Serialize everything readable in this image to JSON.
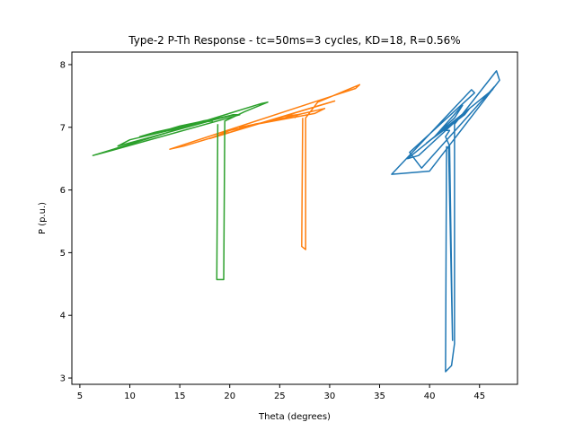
{
  "chart_data": {
    "type": "line",
    "title": "Type-2 P-Th Response - tc=50ms=3 cycles, KD=18, R=0.56%",
    "xlabel": "Theta (degrees)",
    "ylabel": "P (p.u.)",
    "xlim": [
      4.2,
      48.8
    ],
    "ylim": [
      2.9,
      8.2
    ],
    "xticks": [
      5,
      10,
      15,
      20,
      25,
      30,
      35,
      40,
      45
    ],
    "yticks": [
      3,
      4,
      5,
      6,
      7,
      8
    ],
    "grid": false,
    "legend": "none",
    "series": [
      {
        "color": "#1f77b4",
        "points": [
          [
            41.7,
            6.7
          ],
          [
            41.6,
            3.1
          ],
          [
            42.2,
            3.2
          ],
          [
            42.5,
            3.55
          ],
          [
            42.5,
            7.05
          ],
          [
            46.7,
            7.9
          ],
          [
            47.0,
            7.75
          ],
          [
            40.0,
            6.3
          ],
          [
            36.2,
            6.25
          ],
          [
            44.2,
            7.6
          ],
          [
            44.5,
            7.55
          ],
          [
            38.0,
            6.6
          ],
          [
            39.2,
            6.35
          ],
          [
            46.5,
            7.65
          ],
          [
            46.3,
            7.6
          ],
          [
            37.8,
            6.5
          ],
          [
            38.9,
            6.55
          ],
          [
            44.0,
            7.3
          ],
          [
            43.5,
            7.2
          ],
          [
            39.7,
            6.75
          ],
          [
            40.5,
            6.85
          ],
          [
            43.3,
            7.35
          ],
          [
            42.5,
            7.15
          ],
          [
            40.8,
            6.9
          ],
          [
            41.3,
            6.95
          ],
          [
            42.0,
            6.95
          ],
          [
            41.6,
            6.85
          ],
          [
            42.0,
            6.7
          ],
          [
            42.3,
            3.6
          ],
          [
            41.9,
            6.7
          ]
        ]
      },
      {
        "color": "#ff7f0e",
        "points": [
          [
            27.3,
            7.15
          ],
          [
            27.2,
            5.1
          ],
          [
            27.6,
            5.05
          ],
          [
            27.6,
            7.15
          ],
          [
            28.8,
            7.4
          ],
          [
            33.0,
            7.68
          ],
          [
            32.6,
            7.62
          ],
          [
            14.0,
            6.65
          ],
          [
            15.4,
            6.7
          ],
          [
            29.0,
            7.35
          ],
          [
            30.5,
            7.42
          ],
          [
            18.0,
            6.82
          ],
          [
            20.0,
            6.95
          ],
          [
            29.5,
            7.3
          ],
          [
            28.5,
            7.22
          ],
          [
            21.0,
            7.0
          ],
          [
            22.5,
            7.05
          ],
          [
            27.0,
            7.18
          ],
          [
            26.0,
            7.15
          ],
          [
            24.0,
            7.1
          ],
          [
            25.5,
            7.18
          ],
          [
            26.8,
            7.2
          ],
          [
            26.5,
            7.15
          ]
        ]
      },
      {
        "color": "#2ca02c",
        "points": [
          [
            18.8,
            7.05
          ],
          [
            18.7,
            4.57
          ],
          [
            19.4,
            4.57
          ],
          [
            19.5,
            7.1
          ],
          [
            21.5,
            7.25
          ],
          [
            23.8,
            7.4
          ],
          [
            23.2,
            7.38
          ],
          [
            6.3,
            6.55
          ],
          [
            7.5,
            6.6
          ],
          [
            21.0,
            7.2
          ],
          [
            20.3,
            7.2
          ],
          [
            8.8,
            6.7
          ],
          [
            10.0,
            6.8
          ],
          [
            20.5,
            7.2
          ],
          [
            19.8,
            7.18
          ],
          [
            11.0,
            6.85
          ],
          [
            12.5,
            6.92
          ],
          [
            19.0,
            7.15
          ],
          [
            18.2,
            7.12
          ],
          [
            13.5,
            6.95
          ],
          [
            15.0,
            7.02
          ],
          [
            18.0,
            7.12
          ],
          [
            17.3,
            7.1
          ],
          [
            16.0,
            7.05
          ],
          [
            17.0,
            7.08
          ],
          [
            18.3,
            7.1
          ]
        ]
      }
    ]
  }
}
